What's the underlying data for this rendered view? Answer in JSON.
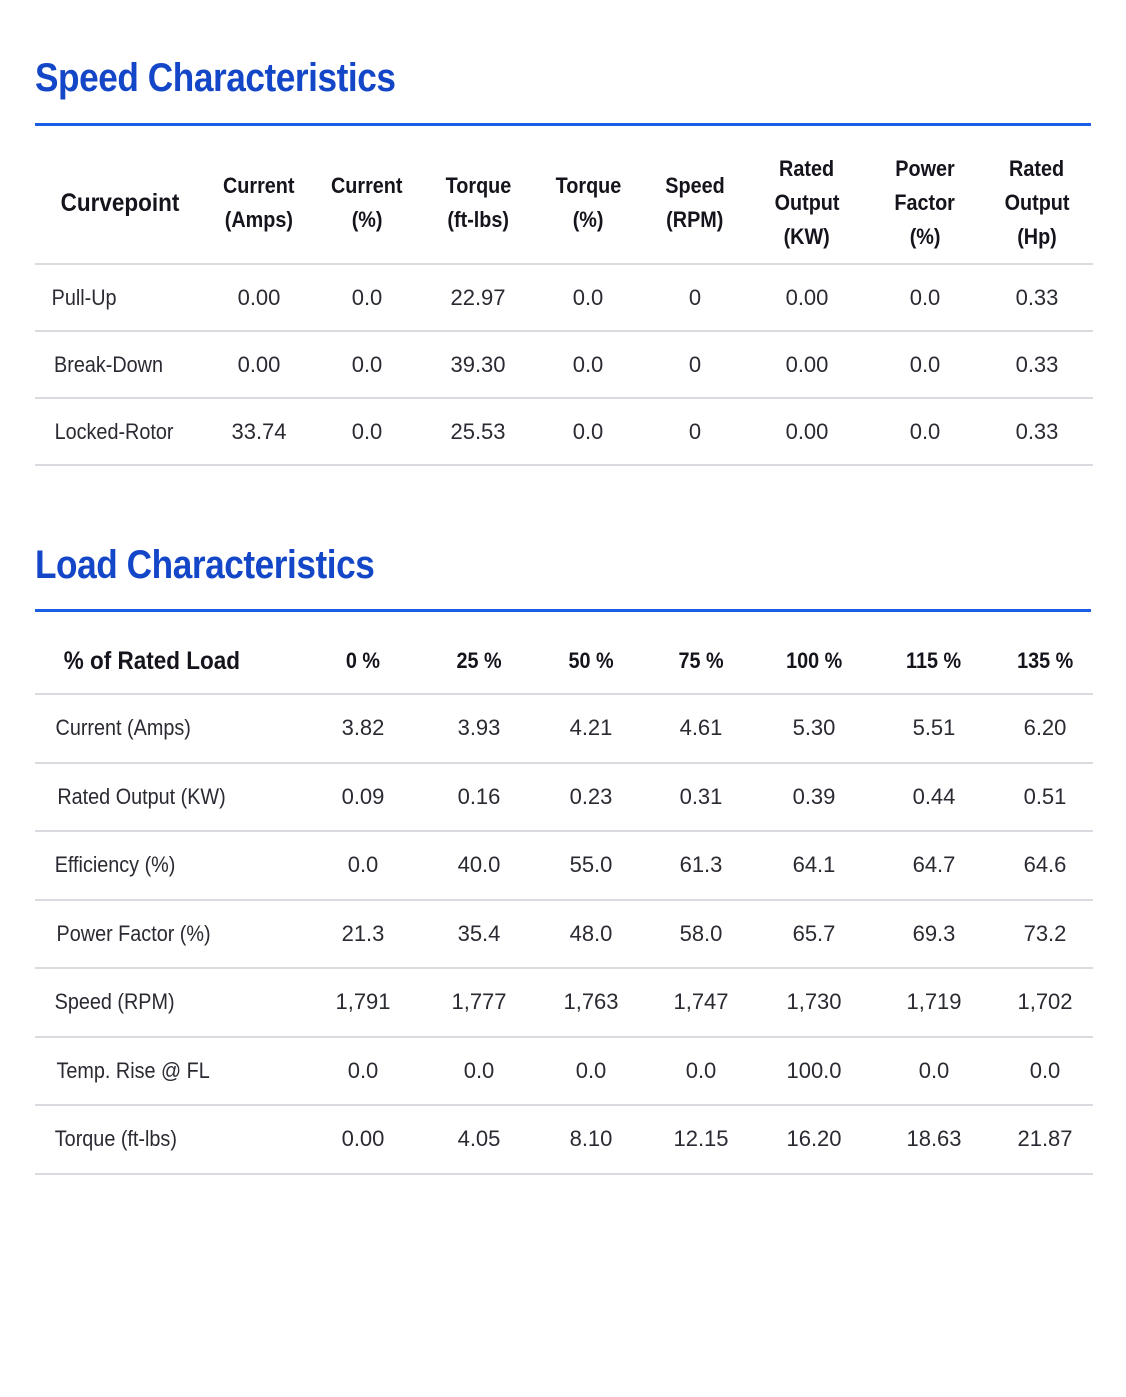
{
  "speed": {
    "title": "Speed Characteristics",
    "headers": [
      [
        "Curvepoint"
      ],
      [
        "Current",
        "(Amps)"
      ],
      [
        "Current",
        "(%)"
      ],
      [
        "Torque",
        "(ft-lbs)"
      ],
      [
        "Torque",
        "(%)"
      ],
      [
        "Speed",
        "(RPM)"
      ],
      [
        "Rated",
        "Output",
        "(KW)"
      ],
      [
        "Power",
        "Factor",
        "(%)"
      ],
      [
        "Rated",
        "Output",
        "(Hp)"
      ]
    ],
    "rows": [
      [
        "Pull-Up",
        "0.00",
        "0.0",
        "22.97",
        "0.0",
        "0",
        "0.00",
        "0.0",
        "0.33"
      ],
      [
        "Break-Down",
        "0.00",
        "0.0",
        "39.30",
        "0.0",
        "0",
        "0.00",
        "0.0",
        "0.33"
      ],
      [
        "Locked-Rotor",
        "33.74",
        "0.0",
        "25.53",
        "0.0",
        "0",
        "0.00",
        "0.0",
        "0.33"
      ]
    ]
  },
  "load": {
    "title": "Load Characteristics",
    "headers": [
      "% of Rated Load",
      "0 %",
      "25 %",
      "50 %",
      "75 %",
      "100 %",
      "115 %",
      "135 %"
    ],
    "rows": [
      [
        "Current (Amps)",
        "3.82",
        "3.93",
        "4.21",
        "4.61",
        "5.30",
        "5.51",
        "6.20"
      ],
      [
        "Rated Output (KW)",
        "0.09",
        "0.16",
        "0.23",
        "0.31",
        "0.39",
        "0.44",
        "0.51"
      ],
      [
        "Efficiency (%)",
        "0.0",
        "40.0",
        "55.0",
        "61.3",
        "64.1",
        "64.7",
        "64.6"
      ],
      [
        "Power Factor (%)",
        "21.3",
        "35.4",
        "48.0",
        "58.0",
        "65.7",
        "69.3",
        "73.2"
      ],
      [
        "Speed (RPM)",
        "1,791",
        "1,777",
        "1,763",
        "1,747",
        "1,730",
        "1,719",
        "1,702"
      ],
      [
        "Temp. Rise @ FL",
        "0.0",
        "0.0",
        "0.0",
        "0.0",
        "100.0",
        "0.0",
        "0.0"
      ],
      [
        "Torque (ft-lbs)",
        "0.00",
        "4.05",
        "8.10",
        "12.15",
        "16.20",
        "18.63",
        "21.87"
      ]
    ]
  }
}
